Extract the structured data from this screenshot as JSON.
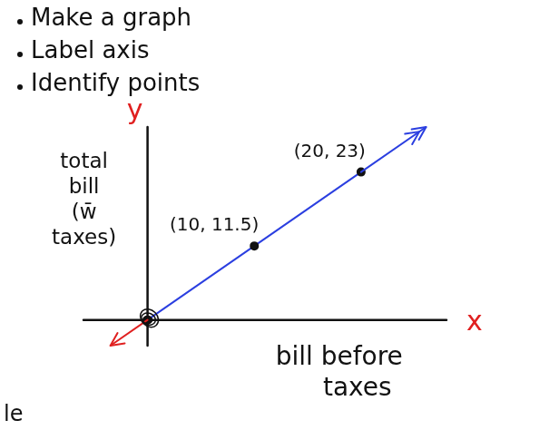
{
  "chart_data": {
    "type": "scatter",
    "notes": [
      "Make a graph",
      "Label axis",
      "Identify points"
    ],
    "x_label": "bill before taxes",
    "y_label": "total bill (w̄ taxes)",
    "x_symbol": "x",
    "y_symbol": "y",
    "annotations": [
      "le"
    ],
    "x": [
      0,
      10,
      20
    ],
    "series": [
      {
        "values": [
          0,
          11.5,
          23
        ],
        "value_labels": [
          null,
          "(10, 11.5)",
          "(20, 23)"
        ],
        "color": "#2b3fe0",
        "marker": "circle",
        "line_style": "solid"
      }
    ],
    "xlim": [
      -6,
      28
    ],
    "ylim": [
      -4,
      30
    ],
    "grid": false,
    "tick_labels": false,
    "data_labels": true
  }
}
